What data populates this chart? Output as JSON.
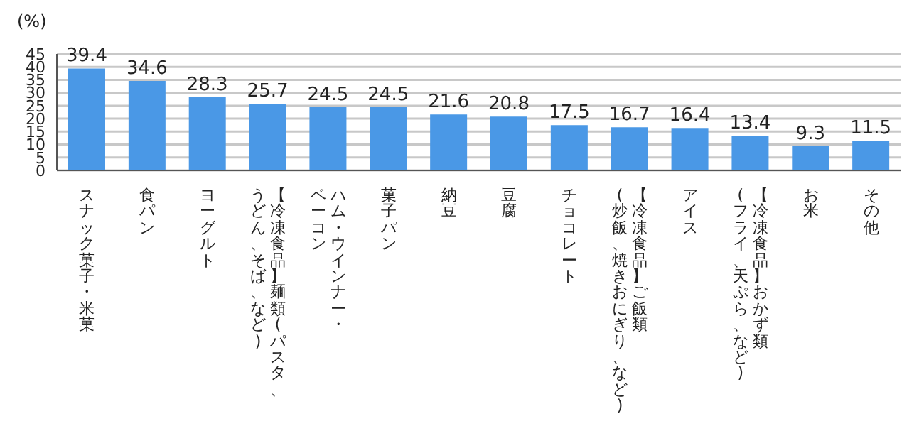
{
  "chart_data": {
    "type": "bar",
    "ylabel": "(%)",
    "categories": [
      "スナック菓子・米菓",
      "食パン",
      "ヨーグルト",
      "【冷凍食品】麺類(パスタ、うどん、そば、など)",
      "ハム・ウインナー・ベーコン",
      "菓子パン",
      "納豆",
      "豆腐",
      "チョコレート",
      "【冷凍食品】ご飯類(炒飯、焼きおにぎり、など)",
      "アイス",
      "【冷凍食品】おかず類(フライ、天ぷら、など)",
      "お米",
      "その他"
    ],
    "values": [
      39.4,
      34.6,
      28.3,
      25.7,
      24.5,
      24.5,
      21.6,
      20.8,
      17.5,
      16.7,
      16.4,
      13.4,
      9.3,
      11.5
    ],
    "color": "#4a98e6",
    "ylim": [
      0,
      45
    ],
    "yticks": [
      0,
      5,
      10,
      15,
      20,
      25,
      30,
      35,
      40,
      45
    ],
    "grid": "y",
    "data_labels": true
  }
}
